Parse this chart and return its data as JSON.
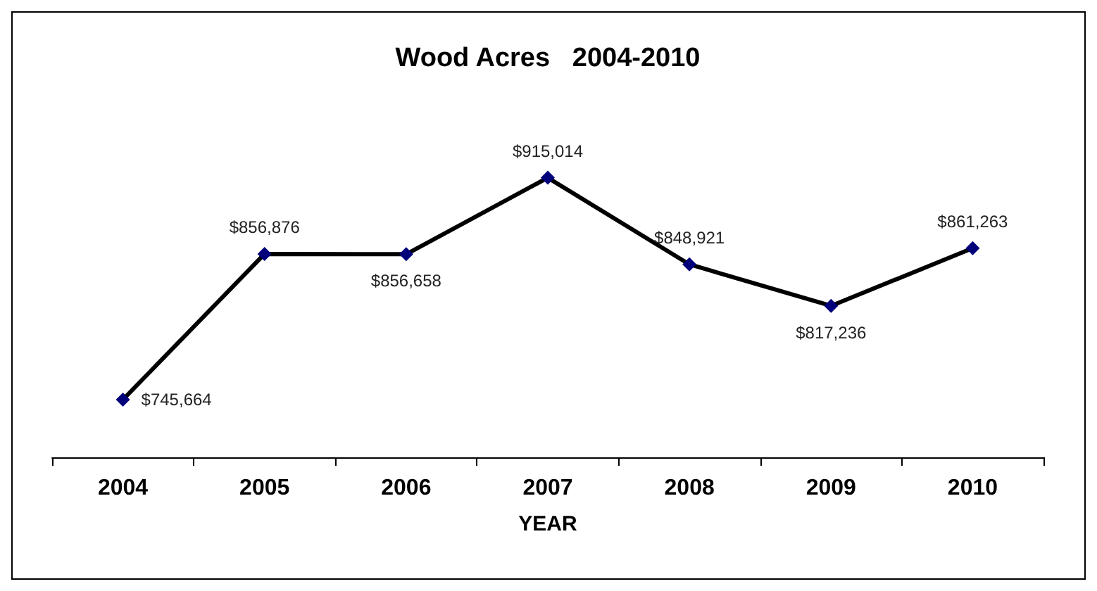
{
  "chart_data": {
    "type": "line",
    "title": "Wood Acres   2004-2010",
    "xlabel": "YEAR",
    "categories": [
      "2004",
      "2005",
      "2006",
      "2007",
      "2008",
      "2009",
      "2010"
    ],
    "series": [
      {
        "color": "#000000",
        "values": [
          745664,
          856876,
          856658,
          915014,
          848921,
          817236,
          861263
        ],
        "value_labels": [
          "$745,664",
          "$856,876",
          "$856,658",
          "$915,014",
          "$848,921",
          "$817,236",
          "$861,263"
        ]
      }
    ],
    "marker": "diamond",
    "grid": false,
    "tick_labels": "x"
  }
}
